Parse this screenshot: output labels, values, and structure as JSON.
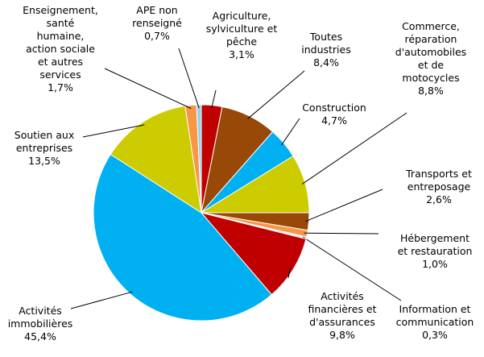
{
  "chart_data": {
    "type": "pie",
    "categories": [
      "Agriculture,\nsylviculture et\npêche",
      "Toutes\nindustries",
      "Construction",
      "Commerce,\nréparation\nd'automobiles\net de\nmotocycles",
      "Transports et\nentreposage",
      "Hébergement\net restauration",
      "Information et\ncommunication",
      "Activités\nfinancières et\nd'assurances",
      "Activités\nimmobilières",
      "Soutien aux\nentreprises",
      "Enseignement,\nsanté\nhumaine,\naction sociale\net autres\nservices",
      "APE non\nrenseigné"
    ],
    "values": [
      3.1,
      8.4,
      4.7,
      8.8,
      2.6,
      1.0,
      0.3,
      9.8,
      45.4,
      13.5,
      1.7,
      0.7
    ],
    "value_labels": [
      "3,1%",
      "8,4%",
      "4,7%",
      "8,8%",
      "2,6%",
      "1,0%",
      "0,3%",
      "9,8%",
      "45,4%",
      "13,5%",
      "1,7%",
      "0,7%"
    ],
    "colors": [
      "#c00000",
      "#984807",
      "#00b0f0",
      "#cccc00",
      "#984807",
      "#f79646",
      "#ccecff",
      "#c00000",
      "#00b0f0",
      "#cccc00",
      "#f79646",
      "#8fd3f5"
    ]
  }
}
